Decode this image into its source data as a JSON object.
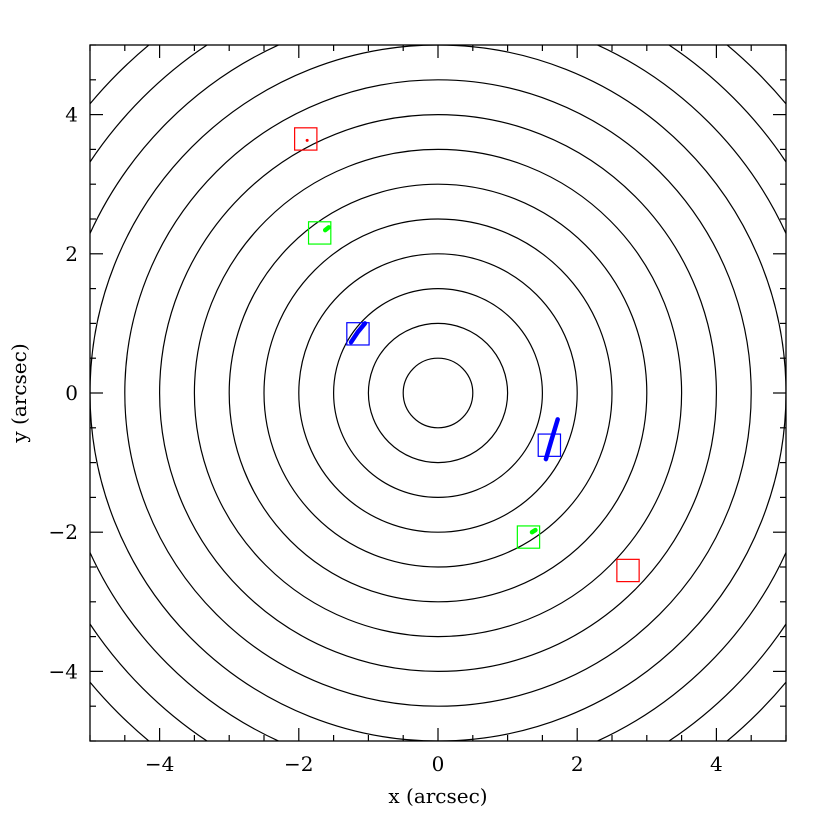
{
  "chart_data": {
    "type": "scatter",
    "xlabel": "x (arcsec)",
    "ylabel": "y (arcsec)",
    "xlim": [
      -5,
      5
    ],
    "ylim": [
      -5,
      5
    ],
    "x_ticks": [
      -4,
      -2,
      0,
      2,
      4
    ],
    "y_ticks": [
      -4,
      -2,
      0,
      2,
      4
    ],
    "x_tick_labels": [
      "−4",
      "−2",
      "0",
      "2",
      "4"
    ],
    "y_tick_labels": [
      "−4",
      "−2",
      "0",
      "2",
      "4"
    ],
    "grid": false,
    "contour_center": [
      0,
      0
    ],
    "contour_radii": [
      0.5,
      1.0,
      1.5,
      2.0,
      2.5,
      3.0,
      3.5,
      4.0,
      4.5,
      5.0,
      5.5,
      6.0,
      6.5
    ],
    "contour_color": "#000000",
    "boxes": [
      {
        "x": -1.9,
        "y": 3.65,
        "color": "#ff0000"
      },
      {
        "x": -1.7,
        "y": 2.3,
        "color": "#00ff00"
      },
      {
        "x": -1.15,
        "y": 0.85,
        "color": "#0000ff"
      },
      {
        "x": 1.6,
        "y": -0.75,
        "color": "#0000ff"
      },
      {
        "x": 1.3,
        "y": -2.07,
        "color": "#00ff00"
      },
      {
        "x": 2.73,
        "y": -2.55,
        "color": "#ff0000"
      }
    ],
    "box_half_size": 0.16,
    "arcs": [
      {
        "color": "#0000ff",
        "points": [
          [
            -1.25,
            0.73
          ],
          [
            -1.15,
            0.88
          ],
          [
            -1.05,
            1.0
          ]
        ]
      },
      {
        "color": "#0000ff",
        "points": [
          [
            1.55,
            -0.95
          ],
          [
            1.63,
            -0.68
          ],
          [
            1.72,
            -0.38
          ]
        ]
      },
      {
        "color": "#00ff00",
        "points": [
          [
            -1.62,
            2.34
          ],
          [
            -1.57,
            2.38
          ]
        ]
      },
      {
        "color": "#00ff00",
        "points": [
          [
            1.35,
            -2.0
          ],
          [
            1.4,
            -1.97
          ]
        ]
      }
    ],
    "dots": [
      {
        "x": -1.88,
        "y": 3.63,
        "color": "#ff0000"
      }
    ]
  }
}
